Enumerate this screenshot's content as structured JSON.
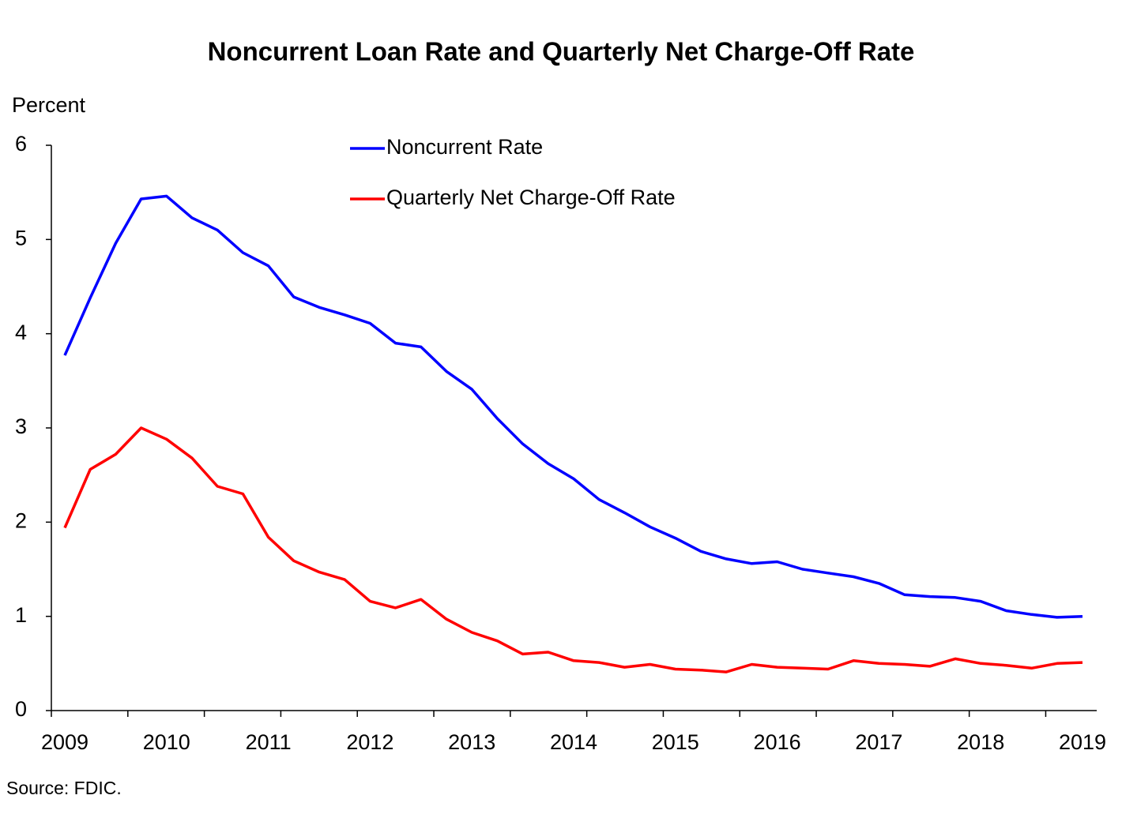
{
  "chart_data": {
    "type": "line",
    "title": "Noncurrent Loan Rate and Quarterly Net Charge-Off Rate",
    "y_label": "Percent",
    "source": "Source:  FDIC.",
    "categories": [
      "2009",
      null,
      null,
      null,
      "2010",
      null,
      null,
      null,
      "2011",
      null,
      null,
      null,
      "2012",
      null,
      null,
      null,
      "2013",
      null,
      null,
      null,
      "2014",
      null,
      null,
      null,
      "2015",
      null,
      null,
      null,
      "2016",
      null,
      null,
      null,
      "2017",
      null,
      null,
      null,
      "2018",
      null,
      null,
      null,
      "2019"
    ],
    "series": [
      {
        "name": "Noncurrent Rate",
        "color": "#0000ff",
        "values": [
          3.77,
          4.38,
          4.96,
          5.43,
          5.46,
          5.23,
          5.1,
          4.86,
          4.72,
          4.39,
          4.28,
          4.2,
          4.11,
          3.9,
          3.86,
          3.6,
          3.41,
          3.1,
          2.83,
          2.62,
          2.46,
          2.24,
          2.1,
          1.95,
          1.83,
          1.69,
          1.61,
          1.56,
          1.58,
          1.5,
          1.46,
          1.42,
          1.35,
          1.23,
          1.21,
          1.2,
          1.16,
          1.06,
          1.02,
          0.99,
          1.0
        ]
      },
      {
        "name": "Quarterly Net Charge-Off Rate",
        "color": "#ff0000",
        "values": [
          1.94,
          2.56,
          2.72,
          3.0,
          2.88,
          2.68,
          2.38,
          2.3,
          1.84,
          1.59,
          1.47,
          1.39,
          1.16,
          1.09,
          1.18,
          0.97,
          0.83,
          0.74,
          0.6,
          0.62,
          0.53,
          0.51,
          0.46,
          0.49,
          0.44,
          0.43,
          0.41,
          0.49,
          0.46,
          0.45,
          0.44,
          0.53,
          0.5,
          0.49,
          0.47,
          0.55,
          0.5,
          0.48,
          0.45,
          0.5,
          0.51
        ]
      }
    ],
    "ylim": [
      0,
      6
    ],
    "yticks": [
      0,
      1,
      2,
      3,
      4,
      5,
      6
    ],
    "grid": false,
    "legend": "top"
  }
}
